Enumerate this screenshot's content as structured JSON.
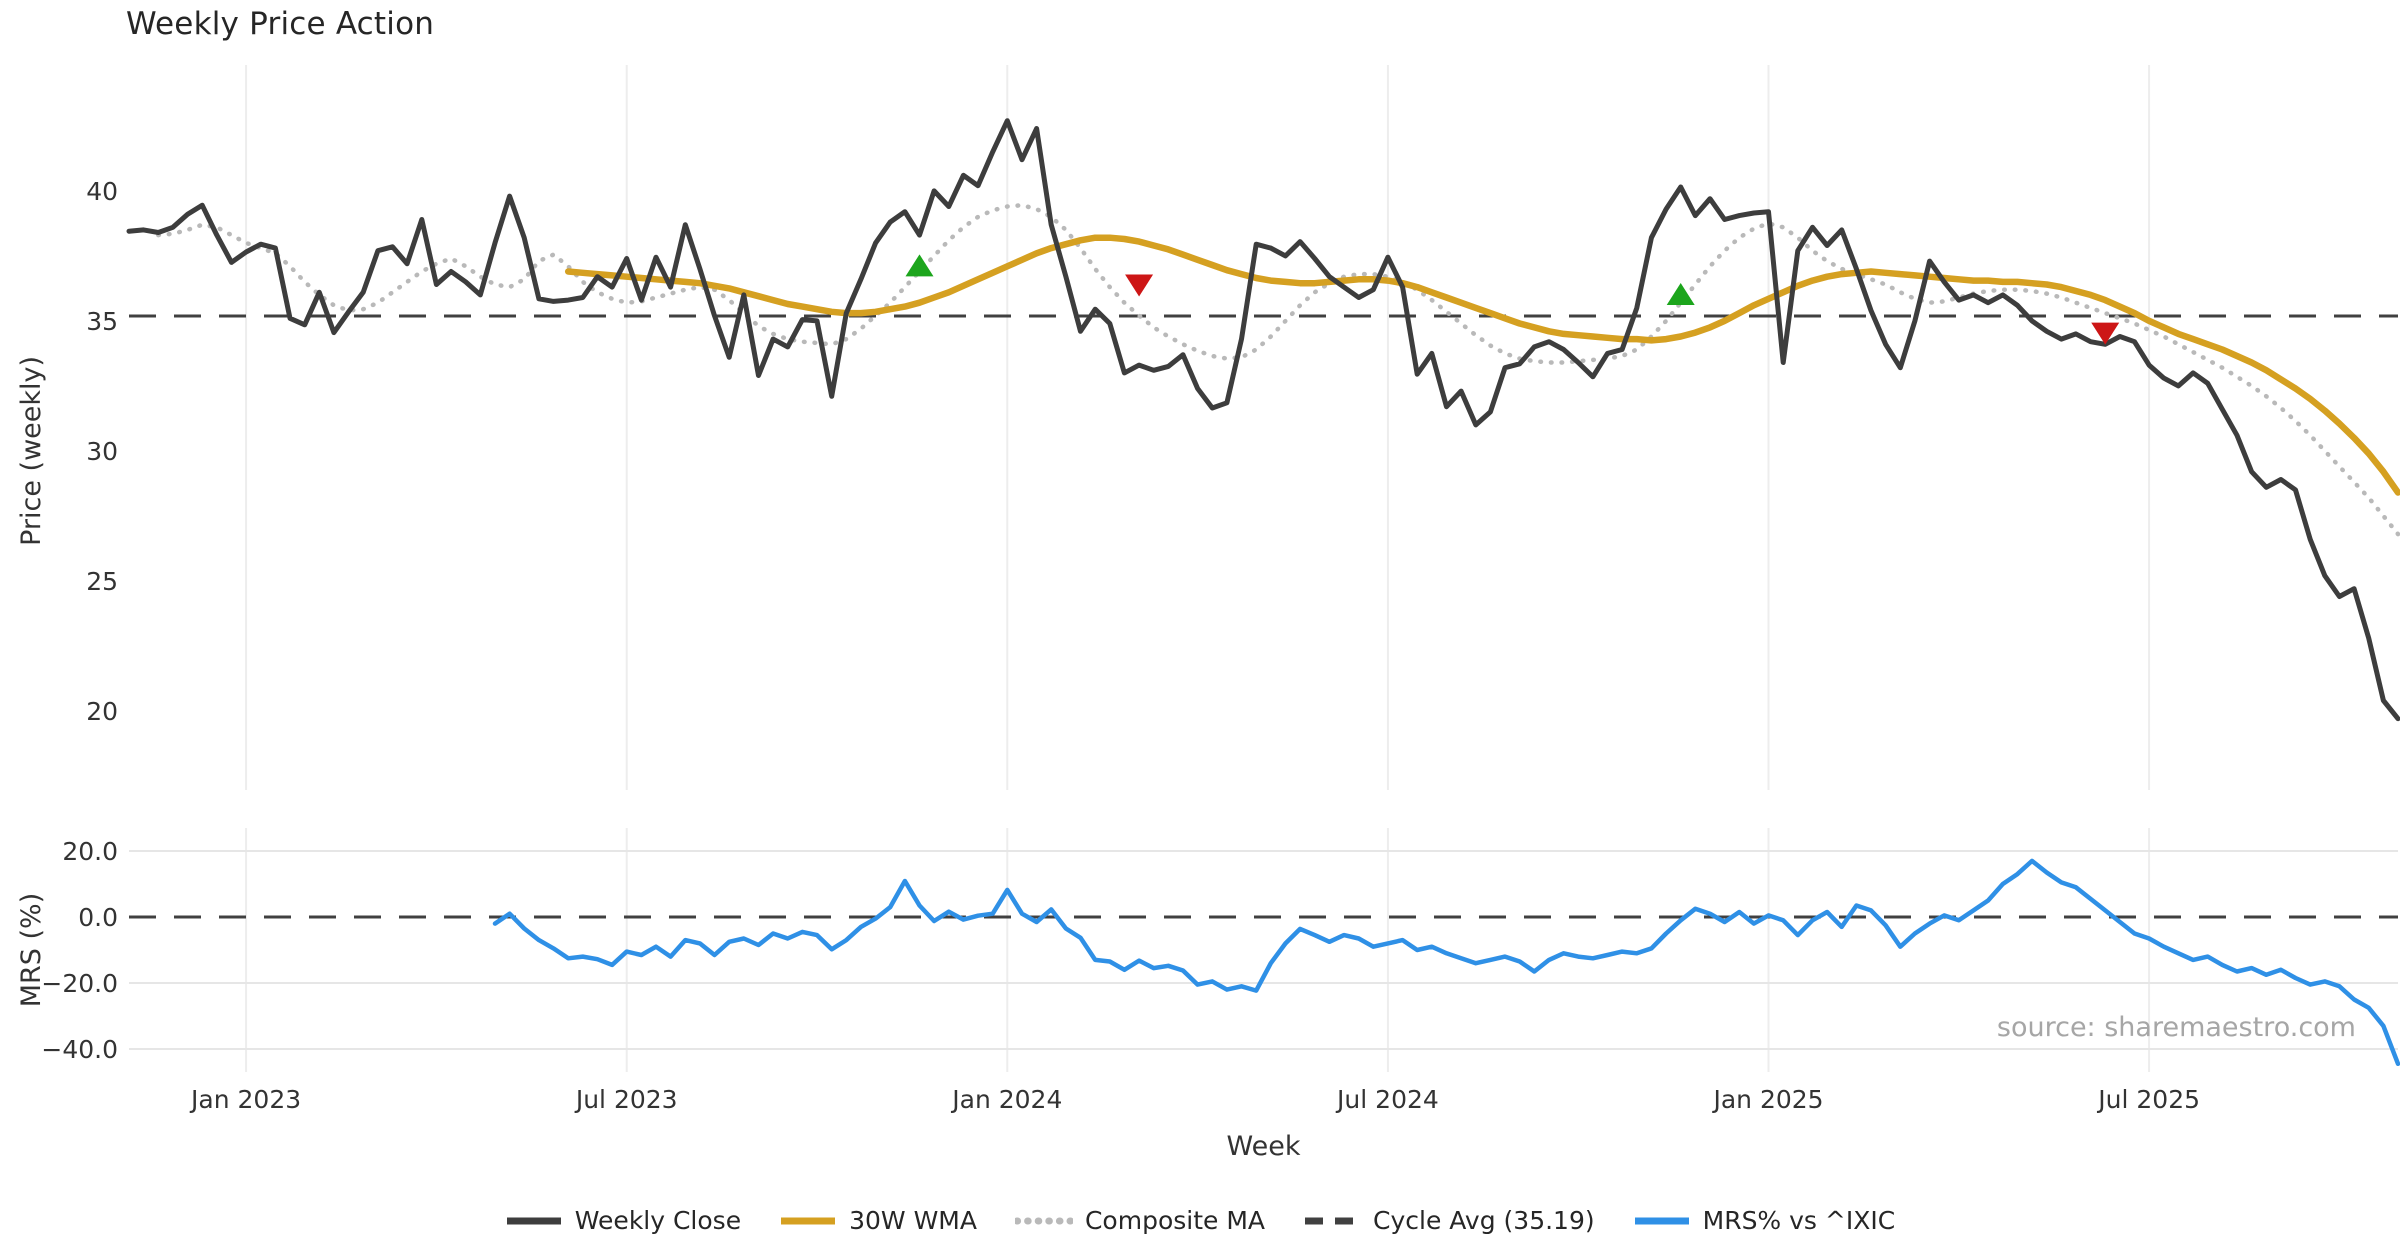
{
  "title": "Weekly Price Action",
  "source_note": "source: sharemaestro.com",
  "axes": {
    "price_ylabel": "Price (weekly)",
    "mrs_ylabel": "MRS (%)",
    "xlabel": "Week"
  },
  "colors": {
    "weekly_close": "#3d3d3d",
    "wma_30w": "#d5a021",
    "composite_ma": "#b9b9b9",
    "cycle_avg": "#404040",
    "mrs": "#2f90e6",
    "buy_marker": "#1ca51c",
    "sell_marker": "#cd1616",
    "grid_light": "#ededed",
    "grid_horiz": "#e6e6e6",
    "tick_text": "#333333",
    "source_text": "#a6a6a6"
  },
  "legend": [
    {
      "label": "Weekly Close",
      "swatch": "solid",
      "color": "#3d3d3d"
    },
    {
      "label": "30W WMA",
      "swatch": "solid",
      "color": "#d5a021"
    },
    {
      "label": "Composite MA",
      "swatch": "dotted",
      "color": "#b9b9b9"
    },
    {
      "label": "Cycle Avg (35.19)",
      "swatch": "dashed",
      "color": "#404040"
    },
    {
      "label": "MRS% vs ^IXIC",
      "swatch": "solid",
      "color": "#2f90e6"
    }
  ],
  "chart_data": [
    {
      "type": "line",
      "panel": "price",
      "title": "Weekly Price Action",
      "ylabel": "Price (weekly)",
      "ylim": [
        17.0,
        44.8
      ],
      "yticks": [
        {
          "v": 40,
          "label": "40"
        },
        {
          "v": 35,
          "label": "35"
        },
        {
          "v": 30,
          "label": "30"
        },
        {
          "v": 25,
          "label": "25"
        },
        {
          "v": 20,
          "label": "20"
        }
      ],
      "x_unit": "week",
      "x_start_date": "2022-11-07",
      "n_weeks": 156,
      "xticks": [
        {
          "week": 8,
          "label": "Jan 2023"
        },
        {
          "week": 34,
          "label": "Jul 2023"
        },
        {
          "week": 60,
          "label": "Jan 2024"
        },
        {
          "week": 86,
          "label": "Jul 2024"
        },
        {
          "week": 112,
          "label": "Jan 2025"
        },
        {
          "week": 138,
          "label": "Jul 2025"
        }
      ],
      "hlines": [
        {
          "name": "Cycle Avg (35.19)",
          "value": 35.19,
          "style": "dashed",
          "color": "#404040"
        }
      ],
      "markers": [
        {
          "type": "buy",
          "week": 54,
          "value": 37.1
        },
        {
          "type": "sell",
          "week": 69,
          "value": 36.4
        },
        {
          "type": "buy",
          "week": 106,
          "value": 36.0
        },
        {
          "type": "sell",
          "week": 135,
          "value": 34.55
        }
      ],
      "series": [
        {
          "name": "Weekly Close",
          "color": "#3d3d3d",
          "style": "solid",
          "width": 5,
          "values": [
            38.45,
            38.5,
            38.4,
            38.6,
            39.1,
            39.45,
            38.3,
            37.25,
            37.65,
            37.95,
            37.8,
            35.1,
            34.85,
            36.1,
            34.55,
            35.35,
            36.1,
            37.7,
            37.85,
            37.2,
            38.9,
            36.4,
            36.9,
            36.5,
            36.0,
            38.0,
            39.8,
            38.2,
            35.85,
            35.75,
            35.8,
            35.9,
            36.7,
            36.3,
            37.4,
            35.8,
            37.45,
            36.3,
            38.7,
            37.0,
            35.2,
            33.6,
            36.0,
            32.9,
            34.3,
            34.0,
            35.05,
            35.0,
            32.1,
            35.3,
            36.6,
            38.0,
            38.8,
            39.2,
            38.3,
            40.0,
            39.4,
            40.6,
            40.2,
            41.5,
            42.7,
            41.2,
            42.4,
            38.7,
            36.7,
            34.6,
            35.45,
            34.9,
            33.0,
            33.3,
            33.1,
            33.25,
            33.7,
            32.4,
            31.65,
            31.85,
            34.3,
            37.95,
            37.8,
            37.5,
            38.05,
            37.4,
            36.7,
            36.3,
            35.9,
            36.2,
            37.45,
            36.3,
            32.95,
            33.75,
            31.7,
            32.3,
            31.0,
            31.5,
            33.2,
            33.35,
            34.0,
            34.2,
            33.9,
            33.4,
            32.85,
            33.75,
            33.9,
            35.5,
            38.2,
            39.3,
            40.15,
            39.05,
            39.7,
            38.9,
            39.05,
            39.15,
            39.2,
            33.4,
            37.7,
            38.6,
            37.9,
            38.5,
            37.0,
            35.4,
            34.1,
            33.2,
            35.0,
            37.3,
            36.5,
            35.8,
            36.0,
            35.7,
            36.0,
            35.6,
            35.0,
            34.6,
            34.3,
            34.5,
            34.2,
            34.1,
            34.4,
            34.2,
            33.3,
            32.8,
            32.5,
            33.0,
            32.6,
            31.6,
            30.6,
            29.2,
            28.6,
            28.9,
            28.5,
            26.6,
            25.2,
            24.4,
            24.7,
            22.8,
            20.4,
            19.7
          ]
        },
        {
          "name": "30W WMA",
          "color": "#d5a021",
          "style": "solid",
          "width": 6.5,
          "values": [
            null,
            null,
            null,
            null,
            null,
            null,
            null,
            null,
            null,
            null,
            null,
            null,
            null,
            null,
            null,
            null,
            null,
            null,
            null,
            null,
            null,
            null,
            null,
            null,
            null,
            null,
            null,
            null,
            null,
            null,
            36.9,
            36.85,
            36.8,
            36.75,
            36.7,
            36.65,
            36.6,
            36.55,
            36.5,
            36.45,
            36.35,
            36.25,
            36.1,
            35.95,
            35.8,
            35.65,
            35.55,
            35.45,
            35.35,
            35.3,
            35.3,
            35.35,
            35.45,
            35.55,
            35.7,
            35.9,
            36.1,
            36.35,
            36.6,
            36.85,
            37.1,
            37.35,
            37.6,
            37.8,
            37.95,
            38.1,
            38.2,
            38.2,
            38.15,
            38.05,
            37.9,
            37.75,
            37.55,
            37.35,
            37.15,
            36.95,
            36.8,
            36.65,
            36.55,
            36.5,
            36.45,
            36.45,
            36.5,
            36.55,
            36.6,
            36.6,
            36.55,
            36.45,
            36.3,
            36.1,
            35.9,
            35.7,
            35.5,
            35.3,
            35.1,
            34.9,
            34.75,
            34.6,
            34.5,
            34.45,
            34.4,
            34.35,
            34.3,
            34.3,
            34.25,
            34.3,
            34.4,
            34.55,
            34.75,
            35.0,
            35.3,
            35.6,
            35.85,
            36.1,
            36.35,
            36.55,
            36.7,
            36.8,
            36.85,
            36.9,
            36.85,
            36.8,
            36.75,
            36.7,
            36.65,
            36.6,
            36.55,
            36.55,
            36.5,
            36.5,
            36.45,
            36.4,
            36.3,
            36.15,
            36.0,
            35.8,
            35.55,
            35.3,
            35.0,
            34.75,
            34.5,
            34.3,
            34.1,
            33.9,
            33.65,
            33.4,
            33.1,
            32.75,
            32.4,
            32.0,
            31.55,
            31.05,
            30.5,
            29.9,
            29.2,
            28.4
          ]
        },
        {
          "name": "Composite MA",
          "color": "#b9b9b9",
          "style": "dotted",
          "width": 4.5,
          "values": [
            null,
            null,
            38.3,
            38.35,
            38.5,
            38.7,
            38.6,
            38.3,
            38.0,
            37.8,
            37.6,
            37.1,
            36.5,
            36.0,
            35.6,
            35.4,
            35.45,
            35.7,
            36.1,
            36.5,
            36.9,
            37.2,
            37.4,
            37.1,
            36.7,
            36.4,
            36.3,
            36.6,
            37.3,
            37.55,
            37.1,
            36.5,
            36.1,
            35.85,
            35.7,
            35.75,
            35.9,
            36.05,
            36.2,
            36.3,
            36.2,
            35.8,
            35.3,
            34.8,
            34.5,
            34.3,
            34.2,
            34.15,
            34.1,
            34.3,
            34.7,
            35.2,
            35.7,
            36.3,
            36.9,
            37.5,
            38.1,
            38.6,
            39.0,
            39.25,
            39.4,
            39.45,
            39.3,
            39.0,
            38.5,
            37.8,
            37.0,
            36.3,
            35.7,
            35.2,
            34.75,
            34.4,
            34.1,
            33.85,
            33.65,
            33.55,
            33.6,
            33.9,
            34.4,
            35.0,
            35.6,
            36.1,
            36.45,
            36.7,
            36.8,
            36.8,
            36.7,
            36.5,
            36.2,
            35.8,
            35.35,
            34.9,
            34.45,
            34.05,
            33.75,
            33.55,
            33.45,
            33.4,
            33.4,
            33.45,
            33.5,
            33.55,
            33.65,
            33.9,
            34.4,
            35.0,
            35.7,
            36.4,
            37.1,
            37.7,
            38.2,
            38.55,
            38.75,
            38.6,
            38.2,
            37.7,
            37.3,
            37.0,
            36.8,
            36.6,
            36.4,
            36.1,
            35.85,
            35.7,
            35.75,
            35.9,
            36.05,
            36.15,
            36.2,
            36.2,
            36.15,
            36.05,
            35.9,
            35.7,
            35.5,
            35.3,
            35.1,
            34.9,
            34.65,
            34.4,
            34.1,
            33.8,
            33.5,
            33.2,
            32.85,
            32.5,
            32.1,
            31.65,
            31.15,
            30.6,
            30.0,
            29.4,
            28.8,
            28.2,
            27.5,
            26.8
          ]
        }
      ]
    },
    {
      "type": "line",
      "panel": "mrs",
      "ylabel": "MRS (%)",
      "xlabel": "Week",
      "ylim": [
        -47.0,
        27.0
      ],
      "yticks": [
        {
          "v": 20,
          "label": "20.0"
        },
        {
          "v": 0,
          "label": "0.0"
        },
        {
          "v": -20,
          "label": "−20.0"
        },
        {
          "v": -40,
          "label": "−40.0"
        }
      ],
      "grid_values": [
        20,
        -20,
        -40
      ],
      "hlines": [
        {
          "name": "zero",
          "value": 0,
          "style": "dashed",
          "color": "#404040"
        }
      ],
      "series": [
        {
          "name": "MRS% vs ^IXIC",
          "color": "#2f90e6",
          "style": "solid",
          "width": 4.5,
          "values": [
            null,
            null,
            null,
            null,
            null,
            null,
            null,
            null,
            null,
            null,
            null,
            null,
            null,
            null,
            null,
            null,
            null,
            null,
            null,
            null,
            null,
            null,
            null,
            null,
            null,
            -2.0,
            1.0,
            -3.5,
            -7.0,
            -9.5,
            -12.5,
            -12.0,
            -12.8,
            -14.5,
            -10.5,
            -11.5,
            -9.0,
            -12.0,
            -7.0,
            -8.0,
            -11.5,
            -7.5,
            -6.5,
            -8.5,
            -5.0,
            -6.5,
            -4.5,
            -5.5,
            -9.8,
            -7.0,
            -3.0,
            -0.5,
            3.0,
            10.9,
            3.5,
            -1.2,
            1.6,
            -0.8,
            0.4,
            1.0,
            8.2,
            1.0,
            -1.5,
            2.3,
            -3.5,
            -6.3,
            -13.0,
            -13.5,
            -16.0,
            -13.2,
            -15.5,
            -14.8,
            -16.2,
            -20.5,
            -19.5,
            -22.0,
            -21.0,
            -22.3,
            -14.0,
            -8.0,
            -3.6,
            -5.5,
            -7.5,
            -5.5,
            -6.5,
            -9.0,
            -8.0,
            -7.0,
            -10.0,
            -9.0,
            -11.0,
            -12.5,
            -14.0,
            -13.0,
            -12.0,
            -13.5,
            -16.5,
            -13.0,
            -11.0,
            -12.0,
            -12.5,
            -11.5,
            -10.5,
            -11.0,
            -9.5,
            -5.0,
            -1.0,
            2.5,
            1.0,
            -1.5,
            1.5,
            -2.0,
            0.5,
            -1.0,
            -5.5,
            -1.0,
            1.5,
            -3.0,
            3.5,
            2.0,
            -2.5,
            -9.0,
            -5.0,
            -2.0,
            0.5,
            -1.0,
            2.0,
            5.0,
            10.0,
            13.0,
            17.0,
            13.5,
            10.5,
            9.0,
            5.5,
            2.0,
            -1.5,
            -5.0,
            -6.5,
            -9.0,
            -11.0,
            -13.0,
            -12.0,
            -14.5,
            -16.5,
            -15.5,
            -17.5,
            -16.0,
            -18.5,
            -20.5,
            -19.5,
            -21.0,
            -25.0,
            -27.5,
            -33.0,
            -44.5
          ]
        }
      ]
    }
  ]
}
